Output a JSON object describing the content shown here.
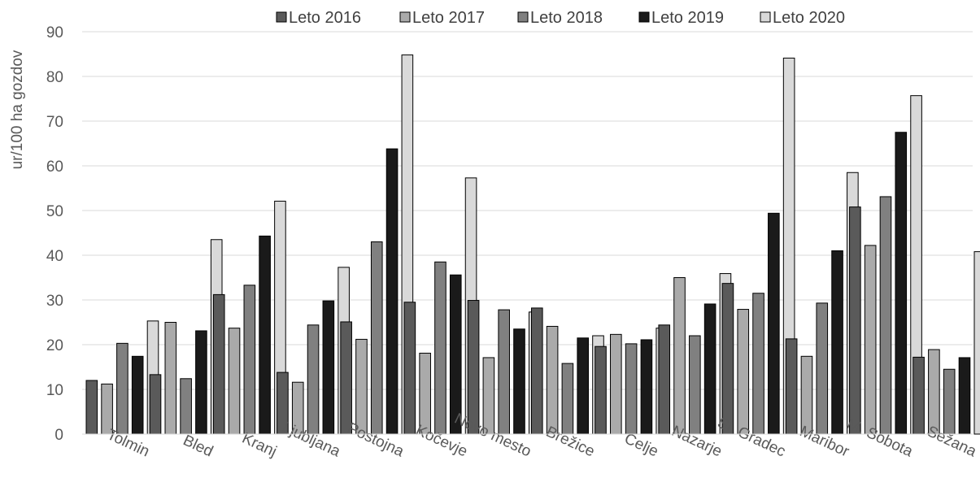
{
  "chart_data": {
    "type": "bar",
    "title": "",
    "xlabel": "",
    "ylabel": "ur/100 ha gozdov",
    "ylim": [
      0,
      90
    ],
    "yticks": [
      0,
      10,
      20,
      30,
      40,
      50,
      60,
      70,
      80,
      90
    ],
    "grid": true,
    "legend_position": "top",
    "categories": [
      "Tolmin",
      "Bled",
      "Kranj",
      "Ljubljana",
      "Postojna",
      "Kočevje",
      "Novo mesto",
      "Brežice",
      "Celje",
      "Nazarje",
      "Sl. Gradec",
      "Maribor",
      "M. Sobota",
      "Sežana"
    ],
    "series": [
      {
        "name": "Leto 2016",
        "color": "#5a5a5a",
        "values": [
          12.0,
          13.3,
          31.2,
          13.8,
          25.1,
          29.5,
          29.9,
          28.2,
          19.6,
          24.4,
          33.7,
          21.3,
          50.8,
          17.2
        ]
      },
      {
        "name": "Leto 2017",
        "color": "#aaaaaa",
        "values": [
          11.2,
          25.0,
          23.7,
          11.6,
          21.2,
          18.1,
          17.1,
          24.1,
          22.3,
          35.0,
          27.9,
          17.4,
          42.2,
          18.9
        ]
      },
      {
        "name": "Leto 2018",
        "color": "#808080",
        "values": [
          20.3,
          12.4,
          33.3,
          24.4,
          43.0,
          38.5,
          27.8,
          15.8,
          20.2,
          22.0,
          31.5,
          29.3,
          53.1,
          14.5
        ]
      },
      {
        "name": "Leto 2019",
        "color": "#1a1a1a",
        "values": [
          17.4,
          23.1,
          44.3,
          29.8,
          63.8,
          35.6,
          23.5,
          21.5,
          21.1,
          29.1,
          49.4,
          41.0,
          67.5,
          17.1
        ]
      },
      {
        "name": "Leto 2020",
        "color": "#d9d9d9",
        "values": [
          25.3,
          43.5,
          52.1,
          37.3,
          84.8,
          57.3,
          27.3,
          22.0,
          23.7,
          35.9,
          84.1,
          58.5,
          75.7,
          40.8
        ]
      }
    ]
  }
}
